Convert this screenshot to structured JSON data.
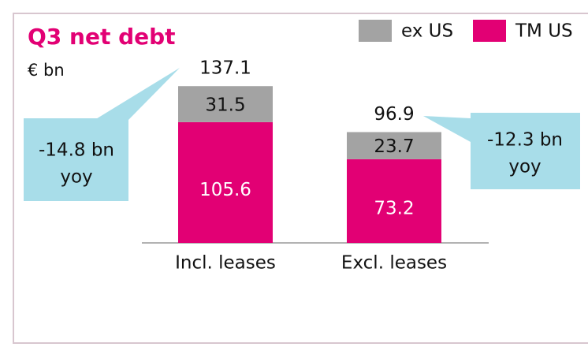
{
  "chart_data": {
    "type": "stacked-bar",
    "title": "Q3 net debt",
    "subtitle": "€ bn",
    "categories": [
      "Incl. leases",
      "Excl. leases"
    ],
    "series": [
      {
        "name": "TM US",
        "color": "#e20074",
        "label_color": "#ffffff",
        "values": [
          105.6,
          73.2
        ]
      },
      {
        "name": "ex US",
        "color": "#a3a3a3",
        "label_color": "#111111",
        "values": [
          31.5,
          23.7
        ]
      }
    ],
    "totals": [
      137.1,
      96.9
    ],
    "annotations": [
      [
        "-14.8 bn",
        "yoy"
      ],
      [
        "-12.3 bn",
        "yoy"
      ]
    ]
  }
}
